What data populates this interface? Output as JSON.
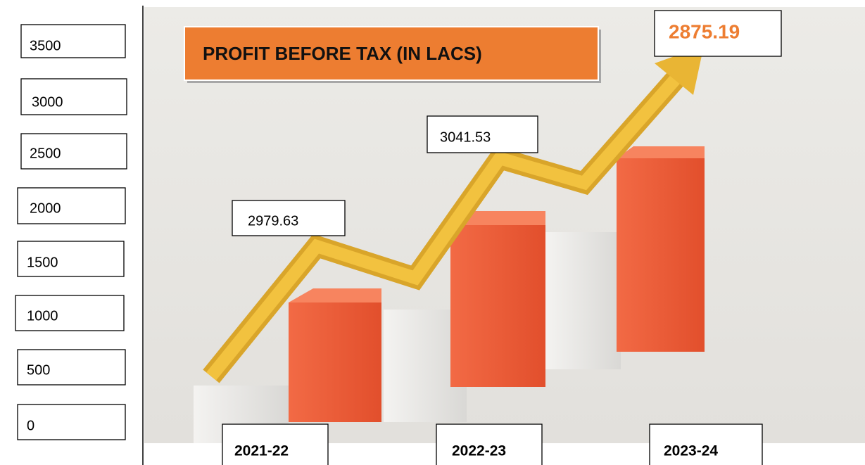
{
  "title": "PROFIT BEFORE TAX (IN LACS)",
  "y_labels": [
    3500,
    3000,
    2500,
    2000,
    1500,
    1000,
    500,
    0
  ],
  "years": [
    "2021-22",
    "2022-23",
    "2023-24"
  ],
  "values": [
    2979.63,
    3041.53,
    2875.19
  ]
}
